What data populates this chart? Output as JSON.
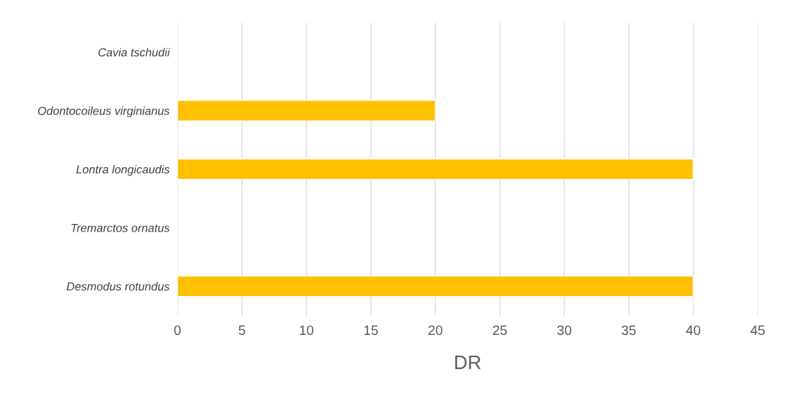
{
  "chart_data": {
    "type": "bar",
    "orientation": "horizontal",
    "xlabel": "DR",
    "categories": [
      "Cavia tschudii",
      "Odontocoileus virginianus",
      "Lontra longicaudis",
      "Tremarctos ornatus",
      "Desmodus rotundus"
    ],
    "values": [
      null,
      20,
      40,
      null,
      40
    ],
    "color": "#ffc000",
    "xlim": [
      0,
      45
    ],
    "xticks": [
      0,
      5,
      10,
      15,
      20,
      25,
      30,
      35,
      40,
      45
    ],
    "grid": "x",
    "legend": false
  }
}
